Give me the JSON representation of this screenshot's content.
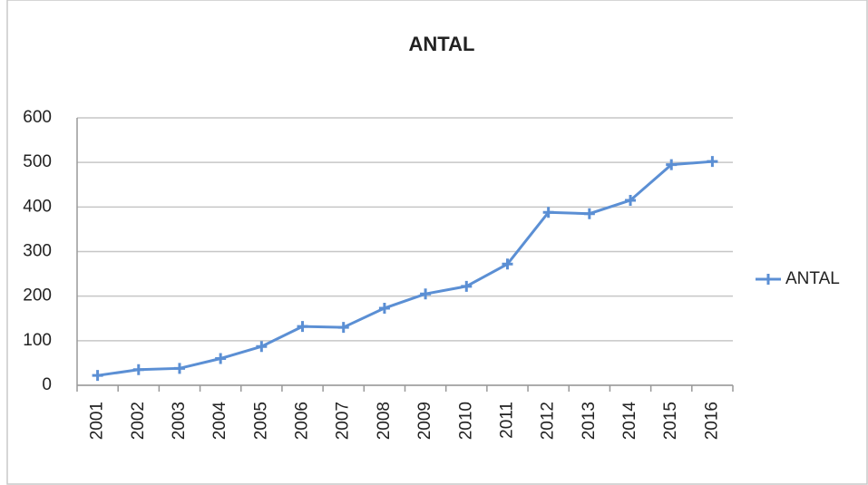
{
  "chart_data": {
    "type": "line",
    "title": "ANTAL",
    "categories": [
      "2001",
      "2002",
      "2003",
      "2004",
      "2005",
      "2006",
      "2007",
      "2008",
      "2009",
      "2010",
      "2011",
      "2012",
      "2013",
      "2014",
      "2015",
      "2016"
    ],
    "series": [
      {
        "name": "ANTAL",
        "color": "#5b8fd4",
        "values": [
          22,
          35,
          38,
          60,
          87,
          132,
          130,
          173,
          205,
          222,
          272,
          388,
          385,
          415,
          495,
          502
        ]
      }
    ],
    "ylim": [
      0,
      600
    ],
    "yticks": [
      0,
      100,
      200,
      300,
      400,
      500,
      600
    ],
    "grid": true,
    "legend": "right"
  }
}
